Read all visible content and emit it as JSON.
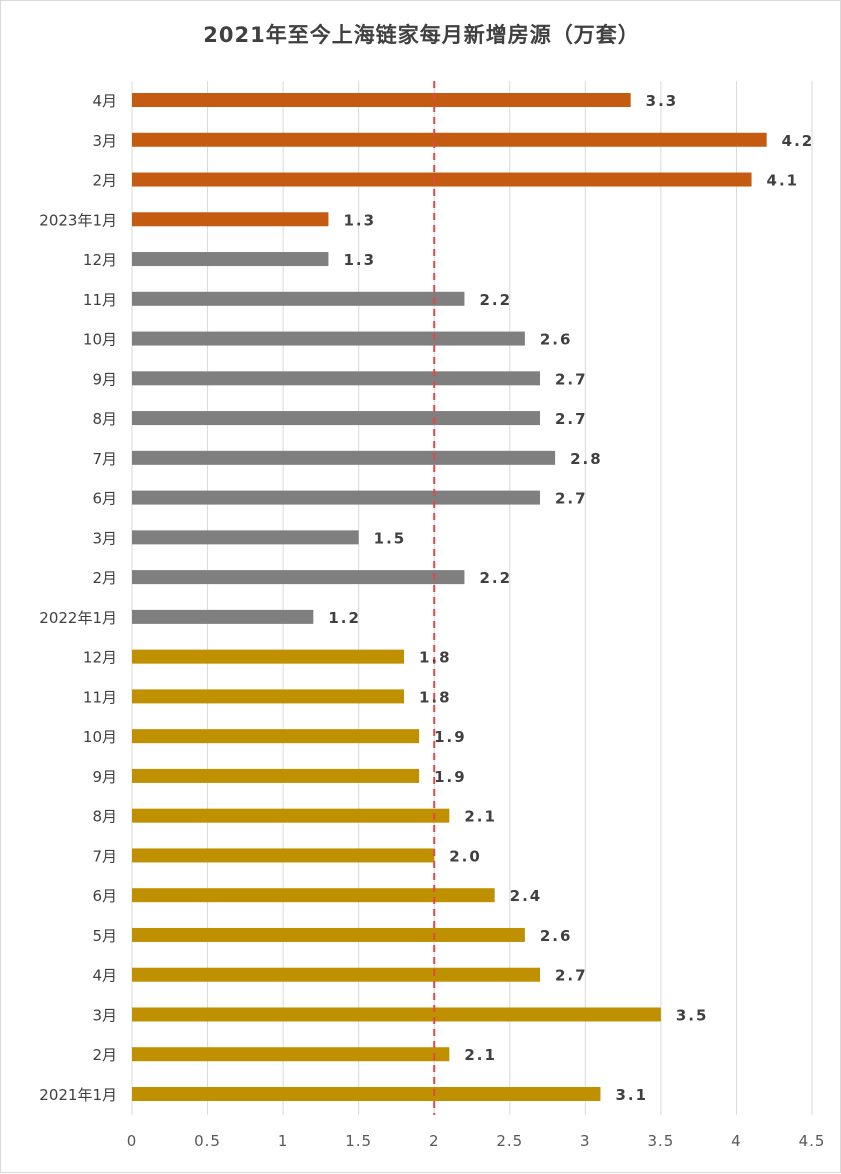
{
  "chart_data": {
    "type": "bar",
    "orientation": "horizontal",
    "title": "2021年至今上海链家每月新增房源（万套）",
    "xlabel": "",
    "ylabel": "",
    "xlim": [
      0,
      4.5
    ],
    "xticks": [
      "0",
      "0.5",
      "1",
      "1.5",
      "2",
      "2.5",
      "3",
      "3.5",
      "4",
      "4.5"
    ],
    "reference_line": 2,
    "reference_color": "#e0484a",
    "grid": true,
    "categories": [
      "4月",
      "3月",
      "2月",
      "2023年1月",
      "12月",
      "11月",
      "10月",
      "9月",
      "8月",
      "7月",
      "6月",
      "3月",
      "2月",
      "2022年1月",
      "12月",
      "11月",
      "10月",
      "9月",
      "8月",
      "7月",
      "6月",
      "5月",
      "4月",
      "3月",
      "2月",
      "2021年1月"
    ],
    "values": [
      3.3,
      4.2,
      4.1,
      1.3,
      1.3,
      2.2,
      2.6,
      2.7,
      2.7,
      2.8,
      2.7,
      1.5,
      2.2,
      1.2,
      1.8,
      1.8,
      1.9,
      1.9,
      2.1,
      2.0,
      2.4,
      2.6,
      2.7,
      3.5,
      2.1,
      3.1
    ],
    "labels": [
      "3.3",
      "4.2",
      "4.1",
      "1.3",
      "1.3",
      "2.2",
      "2.6",
      "2.7",
      "2.7",
      "2.8",
      "2.7",
      "1.5",
      "2.2",
      "1.2",
      "1.8",
      "1.8",
      "1.9",
      "1.9",
      "2.1",
      "2.0",
      "2.4",
      "2.6",
      "2.7",
      "3.5",
      "2.1",
      "3.1"
    ],
    "groups": [
      "2023",
      "2023",
      "2023",
      "2023",
      "2022",
      "2022",
      "2022",
      "2022",
      "2022",
      "2022",
      "2022",
      "2022",
      "2022",
      "2022",
      "2021",
      "2021",
      "2021",
      "2021",
      "2021",
      "2021",
      "2021",
      "2021",
      "2021",
      "2021",
      "2021",
      "2021"
    ],
    "group_colors": {
      "2023": "#c55a11",
      "2022": "#7f7f7f",
      "2021": "#bf9000"
    }
  }
}
